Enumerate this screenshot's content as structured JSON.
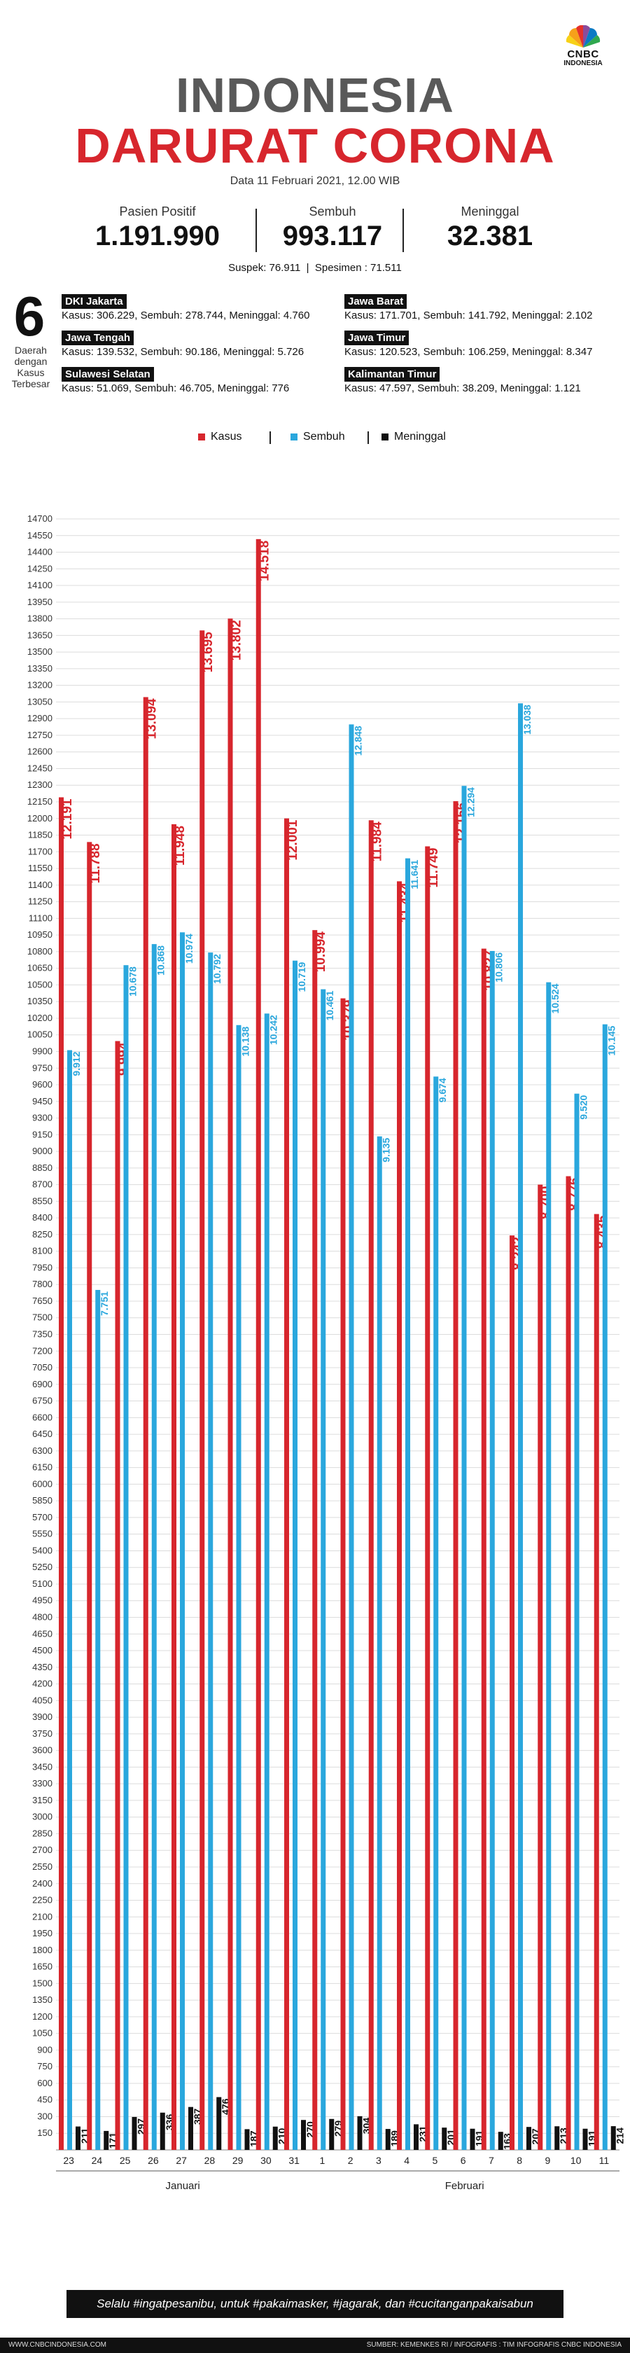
{
  "header": {
    "logo_line1": "CNBC",
    "logo_line2": "INDONESIA",
    "title_line1": "INDONESIA",
    "title_line2": "DARURAT CORONA",
    "date": "Data 11 Februari 2021, 12.00 WIB"
  },
  "stats": [
    {
      "label": "Pasien Positif",
      "value": "1.191.990"
    },
    {
      "label": "Sembuh",
      "value": "993.117"
    },
    {
      "label": "Meninggal",
      "value": "32.381"
    }
  ],
  "suspek_line": "Suspek: 76.911  |  Spesimen : 71.511",
  "regions_count": "6",
  "regions_caption": "Daerah dengan Kasus Terbesar",
  "regions": [
    {
      "name": "DKI Jakarta",
      "info": "Kasus: 306.229, Sembuh: 278.744, Meninggal: 4.760"
    },
    {
      "name": "Jawa Barat",
      "info": "Kasus: 171.701, Sembuh: 141.792, Meninggal: 2.102"
    },
    {
      "name": "Jawa Tengah",
      "info": "Kasus: 139.532, Sembuh: 90.186, Meninggal: 5.726"
    },
    {
      "name": "Jawa Timur",
      "info": "Kasus: 120.523, Sembuh: 106.259, Meninggal: 8.347"
    },
    {
      "name": "Sulawesi Selatan",
      "info": "Kasus: 51.069, Sembuh: 46.705, Meninggal: 776"
    },
    {
      "name": "Kalimantan Timur",
      "info": "Kasus: 47.597, Sembuh: 38.209, Meninggal: 1.121"
    }
  ],
  "colors": {
    "kasus": "#d7262d",
    "sembuh": "#2aa7dd",
    "meninggal": "#111111",
    "title_gray": "#595959"
  },
  "chart_data": {
    "type": "bar",
    "categories": [
      "23",
      "24",
      "25",
      "26",
      "27",
      "28",
      "29",
      "30",
      "31",
      "1",
      "2",
      "3",
      "4",
      "5",
      "6",
      "7",
      "8",
      "9",
      "10",
      "11"
    ],
    "months": [
      "Januari",
      "Februari"
    ],
    "series": [
      {
        "name": "Kasus",
        "values": [
          12191,
          11788,
          9994,
          13094,
          11948,
          13695,
          13802,
          14518,
          12001,
          10994,
          10379,
          11984,
          11434,
          11749,
          12156,
          10827,
          8242,
          8700,
          8776,
          8435
        ],
        "labels": [
          "12.191",
          "11.788",
          "9.994",
          "13.094",
          "11.948",
          "13.695",
          "13.802",
          "14.518",
          "12.001",
          "10.994",
          "10.379",
          "11.984",
          "11.434",
          "11.749",
          "12.156",
          "10.827",
          "8.242",
          "8.700",
          "8.776",
          "8.435"
        ]
      },
      {
        "name": "Sembuh",
        "values": [
          9912,
          7751,
          10678,
          10868,
          10974,
          10792,
          10138,
          10242,
          10719,
          10461,
          12848,
          9135,
          11641,
          9674,
          12294,
          10806,
          13038,
          10524,
          9520,
          10145
        ],
        "labels": [
          "9.912",
          "7.751",
          "10.678",
          "10.868",
          "10.974",
          "10.792",
          "10.138",
          "10.242",
          "10.719",
          "10.461",
          "12.848",
          "9.135",
          "11.641",
          "9.674",
          "12.294",
          "10.806",
          "13.038",
          "10.524",
          "9.520",
          "10.145"
        ]
      },
      {
        "name": "Meninggal",
        "values": [
          211,
          171,
          297,
          336,
          387,
          476,
          187,
          210,
          270,
          279,
          304,
          189,
          231,
          201,
          191,
          163,
          207,
          213,
          191,
          214
        ],
        "labels": [
          "211",
          "171",
          "297",
          "336",
          "387",
          "476",
          "187",
          "210",
          "270",
          "279",
          "304",
          "189",
          "231",
          "201",
          "191",
          "163",
          "207",
          "213",
          "191",
          "214"
        ]
      }
    ],
    "yticks": [
      "14700",
      "14550",
      "14400",
      "14250",
      "14100",
      "13950",
      "13800",
      "13650",
      "13500",
      "13350",
      "13200",
      "13050",
      "12900",
      "12750",
      "12600",
      "12450",
      "12300",
      "12150",
      "12000",
      "11850",
      "11700",
      "11550",
      "11400",
      "11250",
      "11100",
      "10950",
      "10800",
      "10650",
      "10500",
      "10350",
      "10200",
      "10050",
      "9900",
      "9750",
      "9600",
      "9450",
      "9300",
      "9150",
      "9000",
      "8850",
      "8700",
      "8550",
      "8400",
      "8250",
      "8100",
      "7950",
      "7800",
      "7650",
      "7500",
      "7350",
      "7200",
      "7050",
      "6900",
      "6750",
      "6600",
      "6450",
      "6300",
      "6150",
      "6000",
      "5850",
      "5700",
      "5550",
      "5400",
      "5250",
      "5100",
      "4950",
      "4800",
      "4650",
      "4500",
      "4350",
      "4200",
      "4050",
      "3900",
      "3750",
      "3600",
      "3450",
      "3300",
      "3150",
      "3000",
      "2850",
      "2700",
      "2550",
      "2400",
      "2250",
      "2100",
      "1950",
      "1800",
      "1650",
      "1500",
      "1350",
      "1200",
      "1050",
      "900",
      "750",
      "600",
      "450",
      "300",
      "150"
    ],
    "ylim": [
      0,
      14700
    ],
    "grid": true,
    "legend": "top"
  },
  "slogan": "Selalu #ingatpesanibu, untuk #pakaimasker, #jagarak, dan #cucitanganpakaisabun",
  "footer": {
    "left": "WWW.CNBCINDONESIA.COM",
    "right": "SUMBER: KEMENKES RI / INFOGRAFIS : TIM INFOGRAFIS CNBC INDONESIA"
  }
}
